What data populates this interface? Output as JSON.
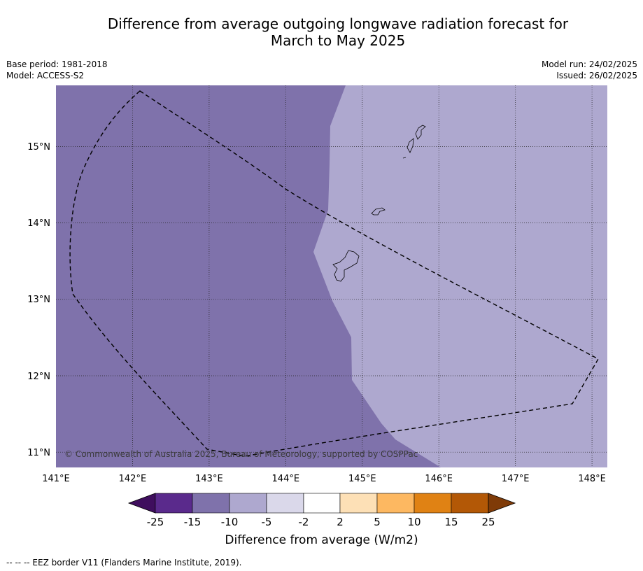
{
  "header": {
    "title_line1": "Difference from average outgoing longwave radiation forecast for",
    "title_line2": "March to May 2025",
    "base_period": "Base period: 1981-2018",
    "model": "Model: ACCESS-S2",
    "model_run": "Model run: 24/02/2025",
    "issued": "Issued: 26/02/2025"
  },
  "map": {
    "lon_range": [
      141.0,
      148.2
    ],
    "lat_range": [
      10.8,
      15.8
    ],
    "lon_ticks": [
      141,
      142,
      143,
      144,
      145,
      146,
      147,
      148
    ],
    "lat_ticks": [
      11,
      12,
      13,
      14,
      15
    ],
    "lon_labels": [
      "141°E",
      "142°E",
      "143°E",
      "144°E",
      "145°E",
      "146°E",
      "147°E",
      "148°E"
    ],
    "lat_labels": [
      "11°N",
      "12°N",
      "13°N",
      "14°N",
      "15°N"
    ],
    "west_category": "-15 to -10",
    "east_category": "-10 to -5",
    "copyright": "© Commonwealth of Australia 2025, Bureau of Meteorology, supported by COSPPac"
  },
  "colorbar": {
    "colors": [
      "#3f0e5e",
      "#5a2a8c",
      "#7f72ab",
      "#aea8cf",
      "#dad8ea",
      "#ffffff",
      "#fde0b6",
      "#fdb861",
      "#e08214",
      "#b35806",
      "#7f3b08"
    ],
    "tick_labels": [
      "-25",
      "-15",
      "-10",
      "-5",
      "-2",
      "2",
      "5",
      "10",
      "15",
      "25"
    ],
    "label": "Difference from average (W/m2)"
  },
  "footnote": "--  --  -- EEZ border V11 (Flanders Marine Institute, 2019)."
}
